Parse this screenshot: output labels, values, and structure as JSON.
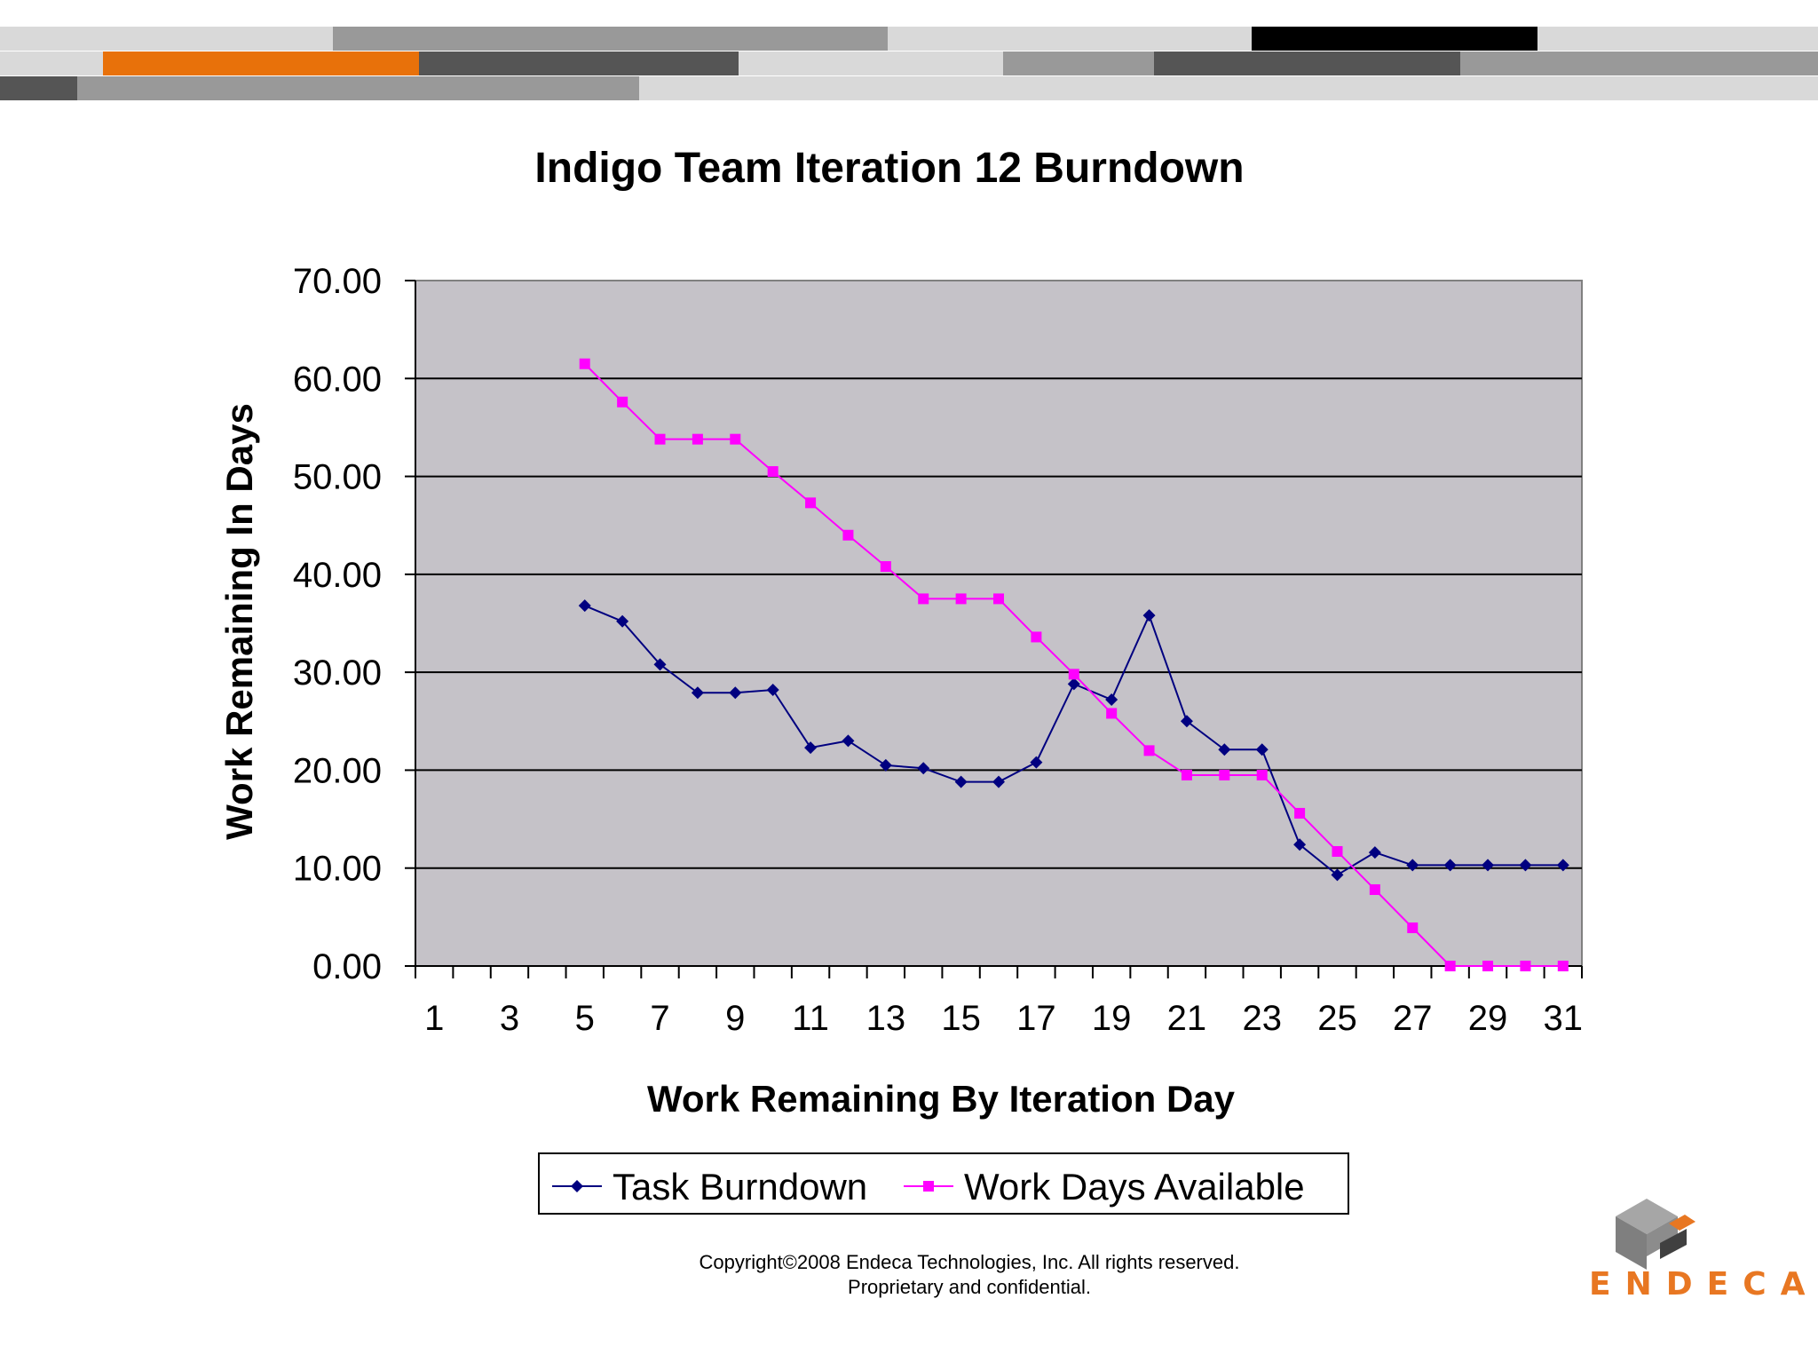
{
  "chart_data": {
    "type": "line",
    "title": "Indigo Team Iteration 12 Burndown",
    "xlabel": "Work Remaining By Iteration Day",
    "ylabel": "Work Remaining In Days",
    "xlim": [
      1,
      31
    ],
    "ylim": [
      0,
      70
    ],
    "yticks": [
      "0.00",
      "10.00",
      "20.00",
      "30.00",
      "40.00",
      "50.00",
      "60.00",
      "70.00"
    ],
    "xtick_labels": [
      "1",
      "3",
      "5",
      "7",
      "9",
      "11",
      "13",
      "15",
      "17",
      "19",
      "21",
      "23",
      "25",
      "27",
      "29",
      "31"
    ],
    "grid": true,
    "legend_position": "bottom",
    "series": [
      {
        "name": "Task Burndown",
        "color": "#000080",
        "marker": "diamond",
        "x": [
          5,
          6,
          7,
          8,
          9,
          10,
          11,
          12,
          13,
          14,
          15,
          16,
          17,
          18,
          19,
          20,
          21,
          22,
          23,
          24,
          25,
          26,
          27,
          28,
          29,
          30,
          31
        ],
        "values": [
          36.8,
          35.2,
          30.8,
          27.9,
          27.9,
          28.2,
          22.3,
          23.0,
          20.5,
          20.2,
          18.8,
          18.8,
          20.8,
          28.8,
          27.2,
          35.8,
          25.0,
          22.1,
          22.1,
          12.4,
          9.3,
          11.6,
          10.3,
          10.3,
          10.3,
          10.3,
          10.3
        ]
      },
      {
        "name": "Work Days Available",
        "color": "#ff00ff",
        "marker": "square",
        "x": [
          5,
          6,
          7,
          8,
          9,
          10,
          11,
          12,
          13,
          14,
          15,
          16,
          17,
          18,
          19,
          20,
          21,
          22,
          23,
          24,
          25,
          26,
          27,
          28,
          29,
          30,
          31
        ],
        "values": [
          61.5,
          57.6,
          53.8,
          53.8,
          53.8,
          50.5,
          47.3,
          44.0,
          40.8,
          37.5,
          37.5,
          37.5,
          33.6,
          29.8,
          25.8,
          22.0,
          19.5,
          19.5,
          19.5,
          15.6,
          11.7,
          7.8,
          3.9,
          0,
          0,
          0,
          0
        ]
      }
    ]
  },
  "footer": {
    "copyright_line1": "Copyright©2008 Endeca Technologies, Inc. All rights reserved.",
    "copyright_line2": "Proprietary and confidential."
  },
  "logo": {
    "text": "ENDECA",
    "color": "#e87722"
  },
  "decor_bar_colors": {
    "orange": "#e8710a",
    "black": "#000000",
    "dark_gray": "#555555",
    "mid_gray": "#999999",
    "light_gray": "#d9d9d9"
  }
}
